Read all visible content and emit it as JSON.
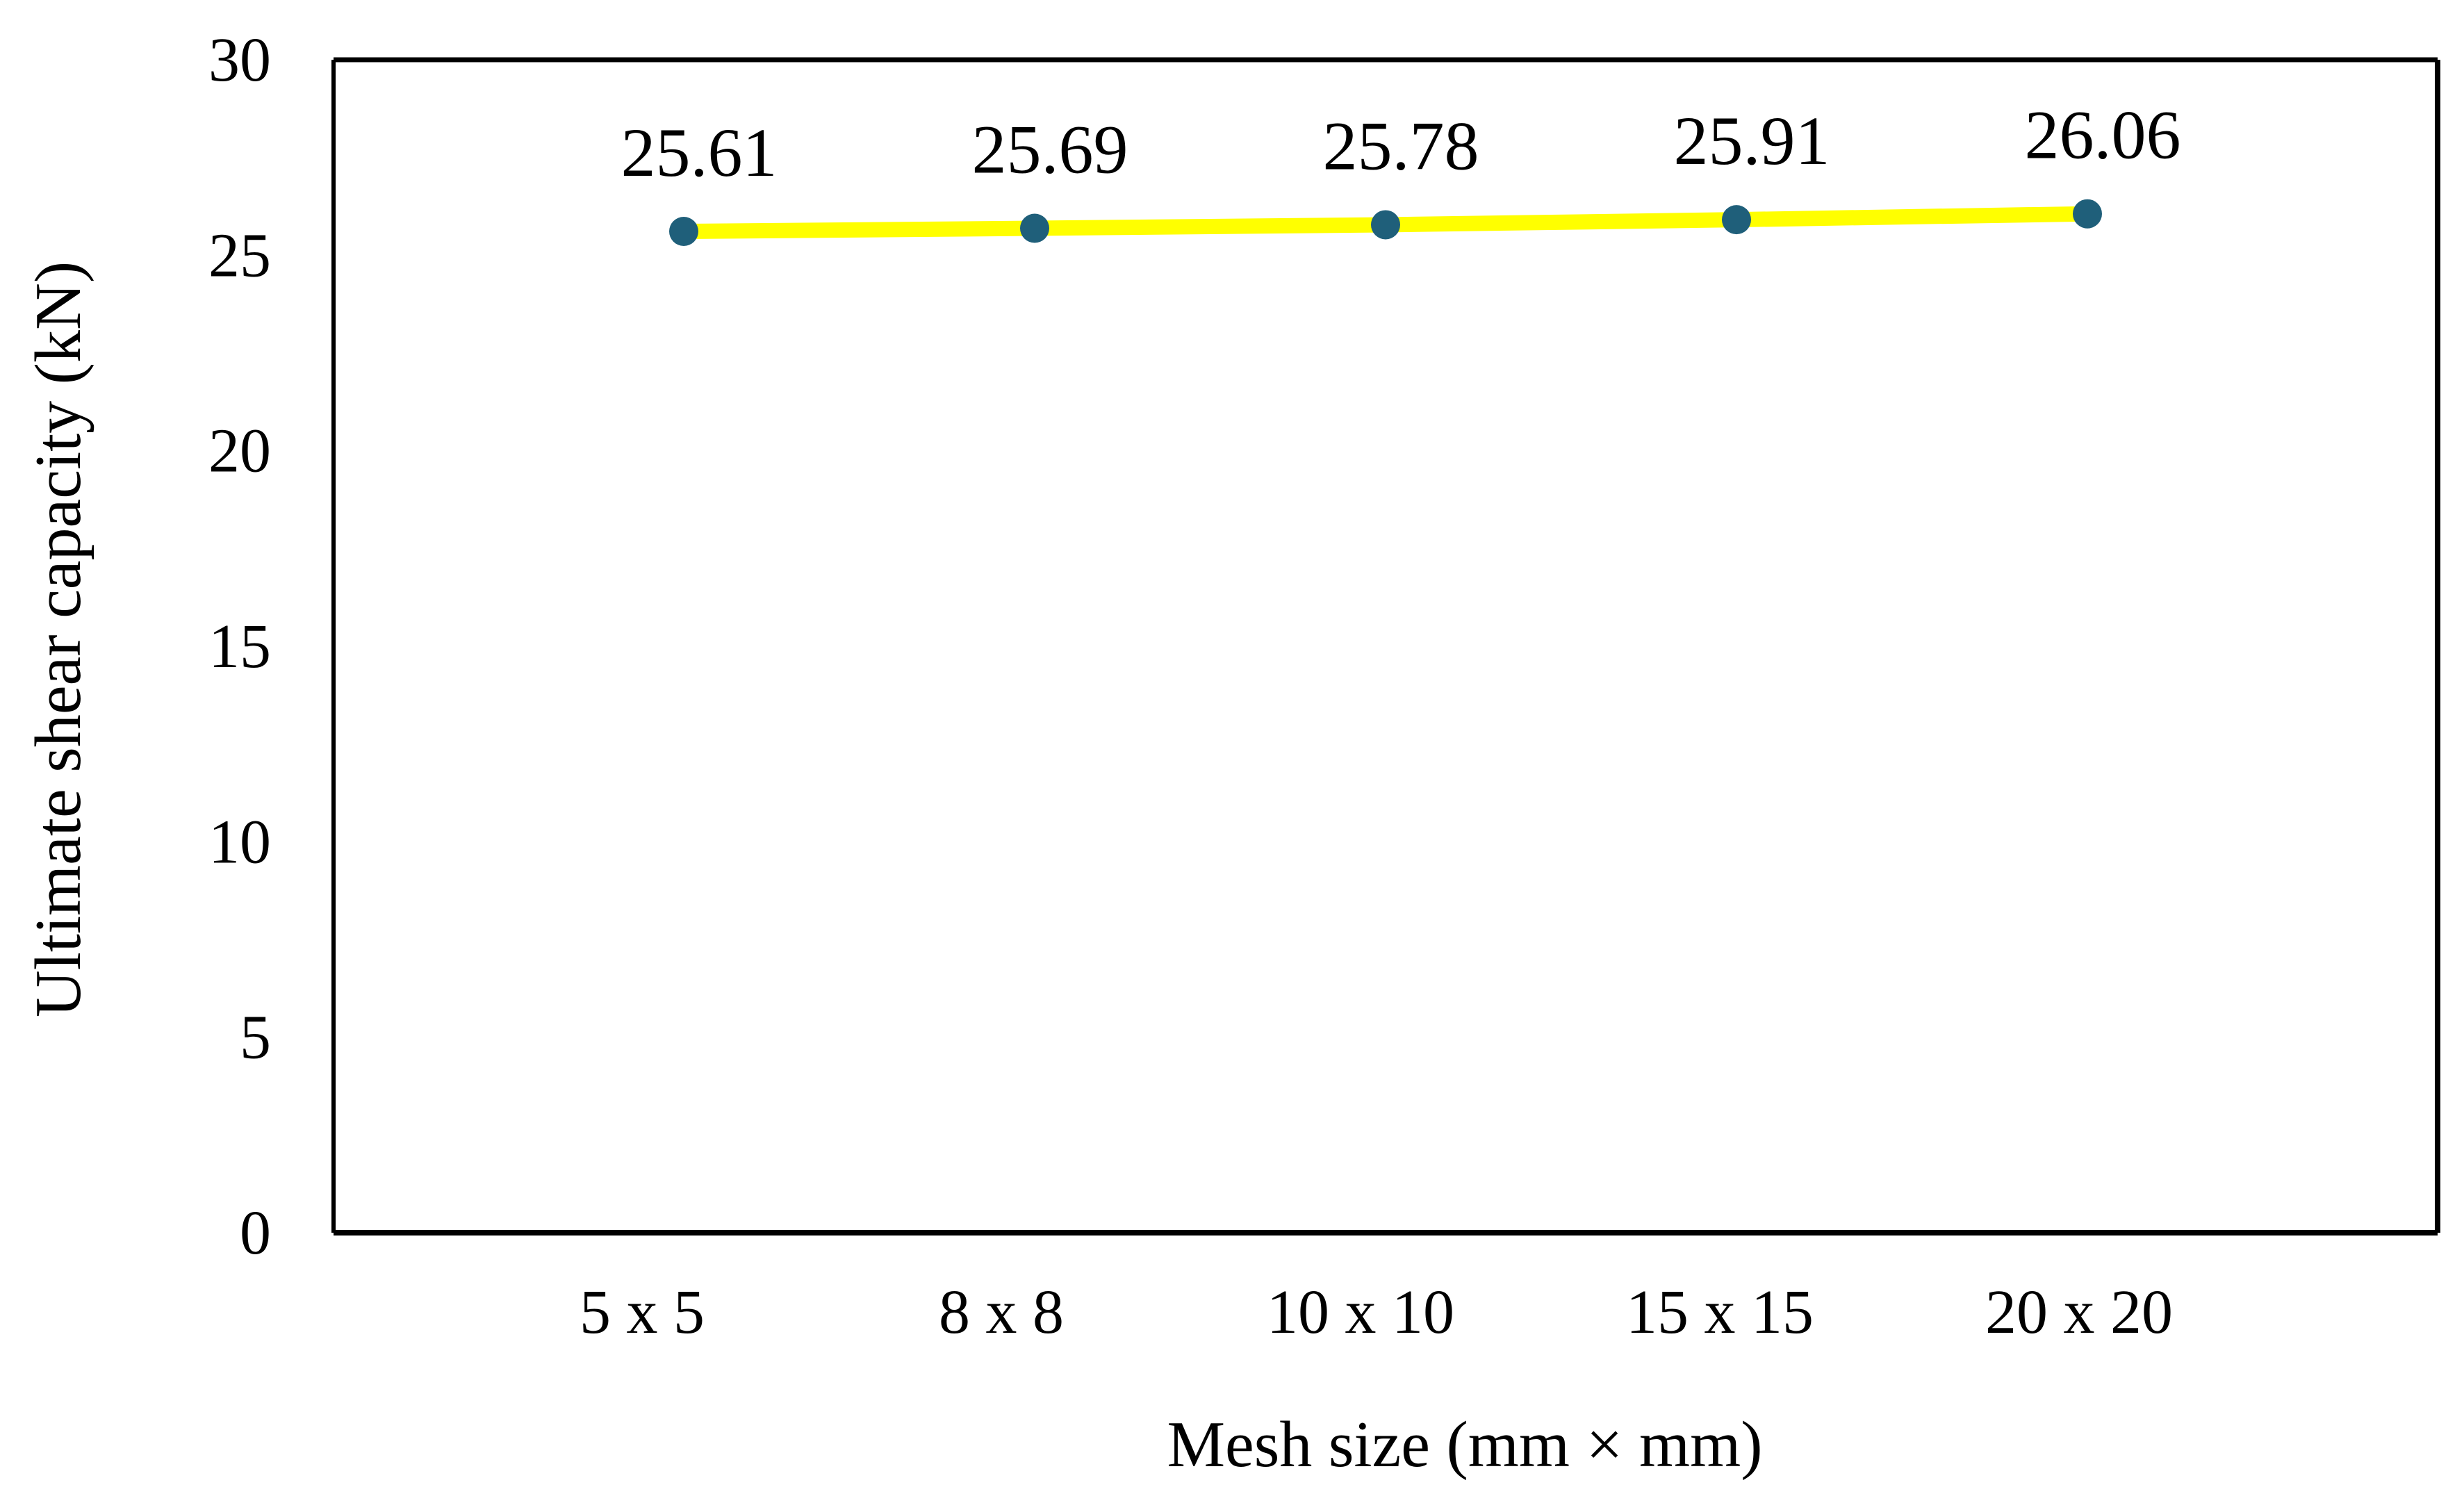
{
  "chart_data": {
    "type": "line",
    "title": "",
    "xlabel": "Mesh size (mm × mm)",
    "ylabel": "Ultimate shear capacity  (kN)",
    "categories": [
      "5 x 5",
      "8 x 8",
      "10 x 10",
      "15 x 15",
      "20 x 20"
    ],
    "series": [
      {
        "values": [
          25.61,
          25.69,
          25.78,
          25.91,
          26.06
        ],
        "data_labels": [
          "25.61",
          "25.69",
          "25.78",
          "25.91",
          "26.06"
        ],
        "line_color": "#FFFF00",
        "marker_color": "#1F5F7A"
      }
    ],
    "ylim": [
      0,
      30
    ],
    "yticks": [
      0,
      5,
      10,
      15,
      20,
      25,
      30
    ],
    "ytick_labels": [
      "0",
      "5",
      "10",
      "15",
      "20",
      "25",
      "30"
    ],
    "grid": false,
    "legend": "none",
    "frame_color": "#000000"
  }
}
